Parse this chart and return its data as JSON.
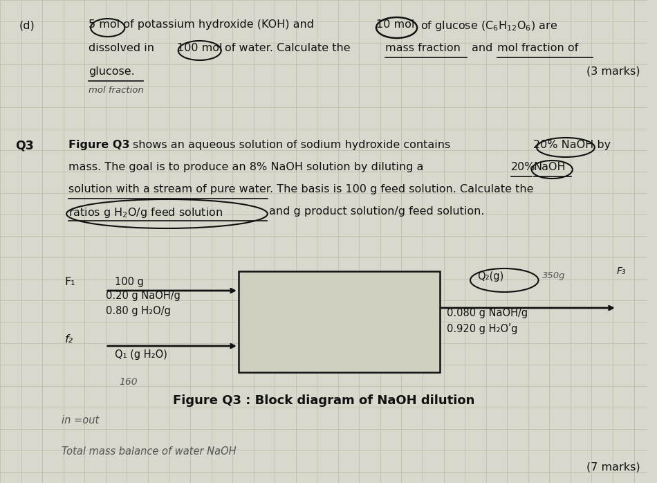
{
  "bg_color": "#d8d8cc",
  "grid_color": "#bbbbaa",
  "text_color": "#111111",
  "fig_caption": "Figure Q3 : Block diagram of NaOH dilution",
  "marks_q3": "(7 marks)",
  "part_d_marks": "(3 marks)",
  "feed_line1": "100 g",
  "feed_line2": "0.20 g NaOH/g",
  "feed_line3": "0.80 g H₂O/g",
  "product_line1": "0.080 g NaOH/g",
  "product_line2": "0.920 g H₂Oʹg",
  "q2_label": "Q₂(g)",
  "q1_label": "Q₁ (g H₂O)",
  "handwritten_160": "160",
  "handwritten_in_out": "in =out",
  "handwritten_mass_balance": "Total mass balance of water NaOH"
}
